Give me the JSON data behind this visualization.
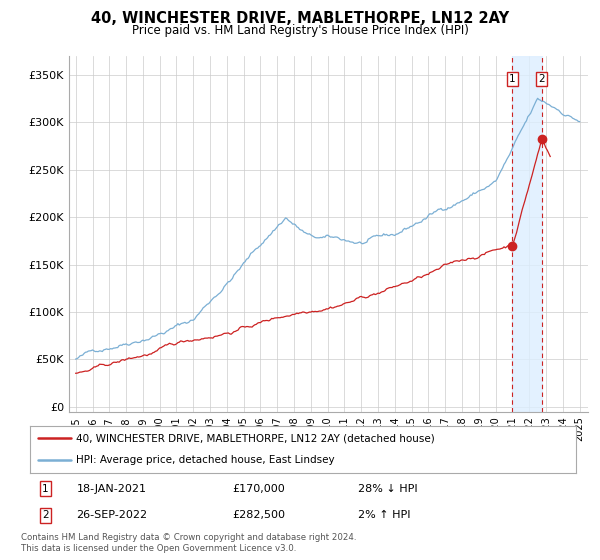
{
  "title": "40, WINCHESTER DRIVE, MABLETHORPE, LN12 2AY",
  "subtitle": "Price paid vs. HM Land Registry's House Price Index (HPI)",
  "ylabel_ticks": [
    "£0",
    "£50K",
    "£100K",
    "£150K",
    "£200K",
    "£250K",
    "£300K",
    "£350K"
  ],
  "ytick_vals": [
    0,
    50000,
    100000,
    150000,
    200000,
    250000,
    300000,
    350000
  ],
  "ylim": [
    -5000,
    370000
  ],
  "hpi_color": "#7bafd4",
  "price_color": "#cc2222",
  "marker1_date_idx": 313,
  "marker2_date_idx": 332,
  "marker1_price": 170000,
  "marker2_price": 282500,
  "sale1_label": "18-JAN-2021",
  "sale1_price": "£170,000",
  "sale1_pct": "28% ↓ HPI",
  "sale2_label": "26-SEP-2022",
  "sale2_price": "£282,500",
  "sale2_pct": "2% ↑ HPI",
  "legend1": "40, WINCHESTER DRIVE, MABLETHORPE, LN12 2AY (detached house)",
  "legend2": "HPI: Average price, detached house, East Lindsey",
  "footer": "Contains HM Land Registry data © Crown copyright and database right 2024.\nThis data is licensed under the Open Government Licence v3.0.",
  "background_color": "#ffffff",
  "grid_color": "#cccccc",
  "shaded_color": "#ddeeff"
}
